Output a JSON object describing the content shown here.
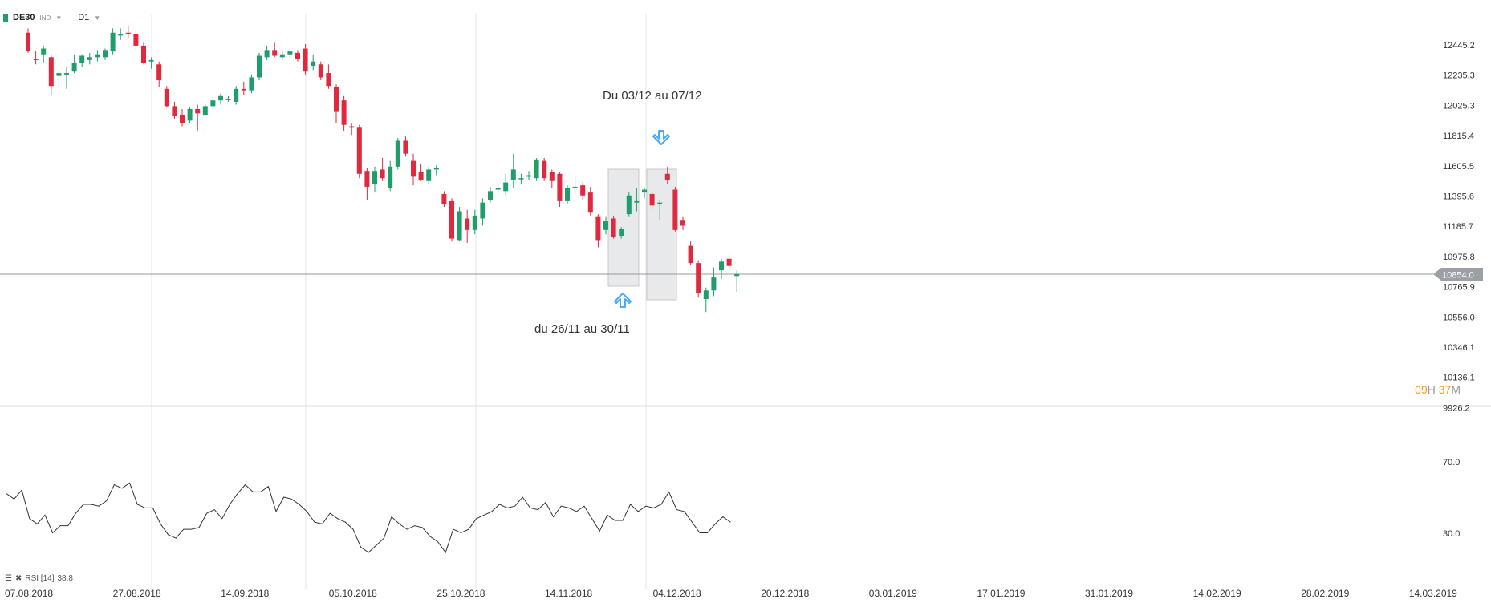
{
  "toolbar": {
    "symbol": "DE30",
    "instrument_type": "IND",
    "timeframe": "D1",
    "symbol_color": "#1f9d6b"
  },
  "price_axis": [
    "12445.2",
    "12235.3",
    "12025.3",
    "11815.4",
    "11605.5",
    "11395.6",
    "11185.7",
    "10975.8",
    "10765.9",
    "10556.0",
    "10346.1",
    "10136.1",
    "9926.2"
  ],
  "current_price": "10854.0",
  "rsi_axis": [
    "70.0",
    "30.0"
  ],
  "rsi_label": {
    "name": "RSI [14]",
    "value": "38.8"
  },
  "date_axis": [
    "07.08.2018",
    "27.08.2018",
    "14.09.2018",
    "05.10.2018",
    "25.10.2018",
    "14.11.2018",
    "04.12.2018",
    "20.12.2018",
    "03.01.2019",
    "17.01.2019",
    "31.01.2019",
    "14.02.2019",
    "28.02.2019",
    "14.03.2019"
  ],
  "annotations": {
    "top_text": "Du 03/12 au 07/12",
    "bottom_text": "du 26/11 au 30/11"
  },
  "timer": {
    "hours": "09",
    "h_unit": "H",
    "minutes": "37",
    "m_unit": "M"
  },
  "colors": {
    "up": "#1f9d6b",
    "down": "#e0283e",
    "arrow": "#4aa8ff",
    "rsi_line": "#333333"
  },
  "chart_data": {
    "type": "candlestick",
    "ylim": [
      9926.2,
      12600
    ],
    "rsi_ylim": [
      0,
      100
    ],
    "candles": [
      {
        "o": 12530,
        "h": 12560,
        "l": 12390,
        "c": 12400
      },
      {
        "o": 12350,
        "h": 12400,
        "l": 12310,
        "c": 12340
      },
      {
        "o": 12380,
        "h": 12440,
        "l": 12320,
        "c": 12420
      },
      {
        "o": 12360,
        "h": 12380,
        "l": 12100,
        "c": 12160
      },
      {
        "o": 12230,
        "h": 12270,
        "l": 12150,
        "c": 12250
      },
      {
        "o": 12240,
        "h": 12290,
        "l": 12140,
        "c": 12250
      },
      {
        "o": 12260,
        "h": 12380,
        "l": 12250,
        "c": 12320
      },
      {
        "o": 12320,
        "h": 12380,
        "l": 12290,
        "c": 12370
      },
      {
        "o": 12340,
        "h": 12390,
        "l": 12310,
        "c": 12360
      },
      {
        "o": 12360,
        "h": 12410,
        "l": 12330,
        "c": 12380
      },
      {
        "o": 12360,
        "h": 12420,
        "l": 12340,
        "c": 12410
      },
      {
        "o": 12400,
        "h": 12560,
        "l": 12380,
        "c": 12530
      },
      {
        "o": 12510,
        "h": 12560,
        "l": 12480,
        "c": 12520
      },
      {
        "o": 12530,
        "h": 12580,
        "l": 12490,
        "c": 12520
      },
      {
        "o": 12520,
        "h": 12540,
        "l": 12410,
        "c": 12440
      },
      {
        "o": 12440,
        "h": 12460,
        "l": 12310,
        "c": 12320
      },
      {
        "o": 12330,
        "h": 12360,
        "l": 12280,
        "c": 12340
      },
      {
        "o": 12310,
        "h": 12330,
        "l": 12150,
        "c": 12200
      },
      {
        "o": 12140,
        "h": 12160,
        "l": 12010,
        "c": 12020
      },
      {
        "o": 12020,
        "h": 12050,
        "l": 11930,
        "c": 11950
      },
      {
        "o": 11960,
        "h": 12000,
        "l": 11880,
        "c": 11900
      },
      {
        "o": 11920,
        "h": 12010,
        "l": 11900,
        "c": 12000
      },
      {
        "o": 12000,
        "h": 12030,
        "l": 11850,
        "c": 11970
      },
      {
        "o": 11960,
        "h": 12030,
        "l": 11950,
        "c": 12020
      },
      {
        "o": 12020,
        "h": 12080,
        "l": 12000,
        "c": 12060
      },
      {
        "o": 12060,
        "h": 12110,
        "l": 12030,
        "c": 12090
      },
      {
        "o": 12070,
        "h": 12090,
        "l": 12050,
        "c": 12070
      },
      {
        "o": 12050,
        "h": 12160,
        "l": 12030,
        "c": 12140
      },
      {
        "o": 12140,
        "h": 12190,
        "l": 12100,
        "c": 12130
      },
      {
        "o": 12130,
        "h": 12240,
        "l": 12110,
        "c": 12220
      },
      {
        "o": 12220,
        "h": 12390,
        "l": 12200,
        "c": 12370
      },
      {
        "o": 12360,
        "h": 12440,
        "l": 12340,
        "c": 12410
      },
      {
        "o": 12410,
        "h": 12460,
        "l": 12360,
        "c": 12370
      },
      {
        "o": 12360,
        "h": 12410,
        "l": 12340,
        "c": 12380
      },
      {
        "o": 12380,
        "h": 12430,
        "l": 12350,
        "c": 12400
      },
      {
        "o": 12390,
        "h": 12410,
        "l": 12330,
        "c": 12350
      },
      {
        "o": 12420,
        "h": 12450,
        "l": 12240,
        "c": 12260
      },
      {
        "o": 12300,
        "h": 12380,
        "l": 12270,
        "c": 12330
      },
      {
        "o": 12310,
        "h": 12330,
        "l": 12200,
        "c": 12220
      },
      {
        "o": 12250,
        "h": 12310,
        "l": 12140,
        "c": 12160
      },
      {
        "o": 12150,
        "h": 12170,
        "l": 11900,
        "c": 11980
      },
      {
        "o": 12060,
        "h": 12090,
        "l": 11850,
        "c": 11890
      },
      {
        "o": 11880,
        "h": 11900,
        "l": 11820,
        "c": 11870
      },
      {
        "o": 11870,
        "h": 11890,
        "l": 11520,
        "c": 11550
      },
      {
        "o": 11570,
        "h": 11590,
        "l": 11370,
        "c": 11460
      },
      {
        "o": 11480,
        "h": 11600,
        "l": 11420,
        "c": 11570
      },
      {
        "o": 11580,
        "h": 11660,
        "l": 11500,
        "c": 11520
      },
      {
        "o": 11450,
        "h": 11640,
        "l": 11430,
        "c": 11600
      },
      {
        "o": 11600,
        "h": 11800,
        "l": 11580,
        "c": 11780
      },
      {
        "o": 11780,
        "h": 11810,
        "l": 11670,
        "c": 11690
      },
      {
        "o": 11640,
        "h": 11690,
        "l": 11470,
        "c": 11530
      },
      {
        "o": 11560,
        "h": 11620,
        "l": 11500,
        "c": 11510
      },
      {
        "o": 11500,
        "h": 11600,
        "l": 11480,
        "c": 11580
      },
      {
        "o": 11580,
        "h": 11610,
        "l": 11540,
        "c": 11590
      },
      {
        "o": 11410,
        "h": 11430,
        "l": 11320,
        "c": 11340
      },
      {
        "o": 11360,
        "h": 11380,
        "l": 11080,
        "c": 11100
      },
      {
        "o": 11090,
        "h": 11320,
        "l": 11080,
        "c": 11290
      },
      {
        "o": 11240,
        "h": 11300,
        "l": 11070,
        "c": 11160
      },
      {
        "o": 11160,
        "h": 11300,
        "l": 11130,
        "c": 11260
      },
      {
        "o": 11240,
        "h": 11380,
        "l": 11190,
        "c": 11350
      },
      {
        "o": 11370,
        "h": 11460,
        "l": 11350,
        "c": 11430
      },
      {
        "o": 11440,
        "h": 11480,
        "l": 11410,
        "c": 11450
      },
      {
        "o": 11430,
        "h": 11550,
        "l": 11400,
        "c": 11490
      },
      {
        "o": 11510,
        "h": 11690,
        "l": 11450,
        "c": 11580
      },
      {
        "o": 11520,
        "h": 11550,
        "l": 11480,
        "c": 11520
      },
      {
        "o": 11530,
        "h": 11570,
        "l": 11510,
        "c": 11540
      },
      {
        "o": 11520,
        "h": 11660,
        "l": 11500,
        "c": 11650
      },
      {
        "o": 11640,
        "h": 11660,
        "l": 11500,
        "c": 11520
      },
      {
        "o": 11560,
        "h": 11580,
        "l": 11450,
        "c": 11500
      },
      {
        "o": 11550,
        "h": 11560,
        "l": 11320,
        "c": 11360
      },
      {
        "o": 11360,
        "h": 11470,
        "l": 11340,
        "c": 11450
      },
      {
        "o": 11450,
        "h": 11530,
        "l": 11400,
        "c": 11460
      },
      {
        "o": 11470,
        "h": 11490,
        "l": 11370,
        "c": 11400
      },
      {
        "o": 11420,
        "h": 11460,
        "l": 11260,
        "c": 11280
      },
      {
        "o": 11250,
        "h": 11270,
        "l": 11040,
        "c": 11090
      },
      {
        "o": 11160,
        "h": 11250,
        "l": 11130,
        "c": 11220
      },
      {
        "o": 11240,
        "h": 11260,
        "l": 11100,
        "c": 11110
      },
      {
        "o": 11120,
        "h": 11180,
        "l": 11100,
        "c": 11170
      },
      {
        "o": 11270,
        "h": 11420,
        "l": 11250,
        "c": 11400
      },
      {
        "o": 11350,
        "h": 11450,
        "l": 11290,
        "c": 11360
      },
      {
        "o": 11420,
        "h": 11450,
        "l": 11380,
        "c": 11440
      },
      {
        "o": 11410,
        "h": 11430,
        "l": 11300,
        "c": 11330
      },
      {
        "o": 11350,
        "h": 11370,
        "l": 11230,
        "c": 11350
      },
      {
        "o": 11550,
        "h": 11600,
        "l": 11480,
        "c": 11510
      },
      {
        "o": 11440,
        "h": 11460,
        "l": 11150,
        "c": 11160
      },
      {
        "o": 11230,
        "h": 11250,
        "l": 11160,
        "c": 11190
      },
      {
        "o": 11050,
        "h": 11080,
        "l": 10920,
        "c": 10930
      },
      {
        "o": 10930,
        "h": 10950,
        "l": 10690,
        "c": 10720
      },
      {
        "o": 10680,
        "h": 10760,
        "l": 10590,
        "c": 10740
      },
      {
        "o": 10740,
        "h": 10900,
        "l": 10700,
        "c": 10830
      },
      {
        "o": 10880,
        "h": 10960,
        "l": 10820,
        "c": 10940
      },
      {
        "o": 10960,
        "h": 10990,
        "l": 10880,
        "c": 10910
      },
      {
        "o": 10840,
        "h": 10880,
        "l": 10730,
        "c": 10854
      }
    ],
    "rsi": [
      54,
      51,
      56,
      40,
      37,
      42,
      32,
      36,
      36,
      43,
      48,
      48,
      47,
      50,
      59,
      57,
      60,
      48,
      46,
      46,
      37,
      31,
      29,
      34,
      34,
      35,
      43,
      45,
      40,
      48,
      54,
      59,
      55,
      55,
      58,
      44,
      52,
      51,
      48,
      44,
      38,
      37,
      43,
      40,
      38,
      34,
      24,
      21,
      25,
      29,
      41,
      37,
      34,
      36,
      35,
      30,
      27,
      21,
      34,
      32,
      34,
      40,
      42,
      44,
      48,
      46,
      47,
      52,
      46,
      45,
      49,
      41,
      47,
      46,
      44,
      47,
      40,
      33,
      42,
      39,
      39,
      48,
      44,
      47,
      46,
      48,
      55,
      45,
      44,
      38,
      32,
      32,
      37,
      41,
      38
    ]
  }
}
